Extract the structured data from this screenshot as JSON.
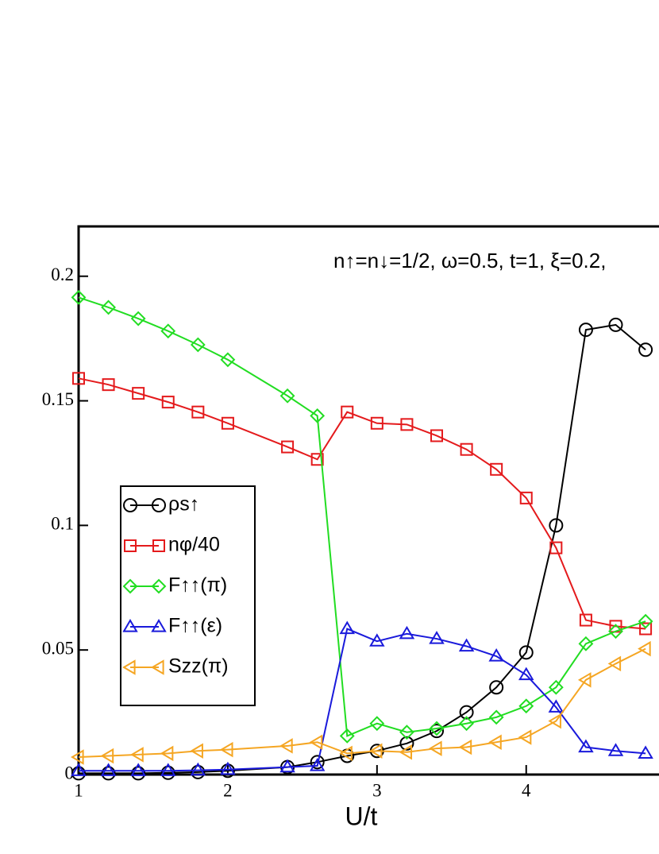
{
  "chart_data": {
    "type": "line",
    "annotation": "n↑=n↓=1/2, ω=0.5, t=1, ξ=0.2,",
    "x_label": "U/t",
    "x": [
      1,
      1.2,
      1.4,
      1.6,
      1.8,
      2.0,
      2.4,
      2.6,
      2.8,
      3.0,
      3.2,
      3.4,
      3.6,
      3.8,
      4.0,
      4.2,
      4.4,
      4.6,
      4.8
    ],
    "xlim": [
      1,
      4.89
    ],
    "xticks": [
      1,
      2,
      3,
      4
    ],
    "ylim": [
      0,
      0.22
    ],
    "yticks": [
      0,
      0.05,
      0.1,
      0.15,
      0.2
    ],
    "series": [
      {
        "name": "ρs↑",
        "color": "#000000",
        "marker": "circle",
        "values": [
          0.0005,
          0.0005,
          0.0005,
          0.0007,
          0.001,
          0.0015,
          0.003,
          0.005,
          0.0075,
          0.0095,
          0.0125,
          0.0175,
          0.025,
          0.035,
          0.049,
          0.1,
          0.1785,
          0.1805,
          0.1705
        ]
      },
      {
        "name": "nφ/40",
        "color": "#e41a1c",
        "marker": "square",
        "values": [
          0.159,
          0.1565,
          0.153,
          0.1495,
          0.1455,
          0.141,
          0.1315,
          0.1265,
          0.1455,
          0.141,
          0.1405,
          0.136,
          0.1305,
          0.1225,
          0.111,
          0.091,
          0.062,
          0.0595,
          0.0585
        ]
      },
      {
        "name": "F↑↑(π)",
        "color": "#22dd22",
        "marker": "diamond",
        "values": [
          0.1915,
          0.1875,
          0.183,
          0.178,
          0.1725,
          0.1665,
          0.152,
          0.144,
          0.0155,
          0.0205,
          0.017,
          0.0185,
          0.0205,
          0.023,
          0.0275,
          0.035,
          0.0525,
          0.0575,
          0.0615
        ]
      },
      {
        "name": "F↑↑(ε)",
        "color": "#1a1adb",
        "marker": "triangle-up",
        "values": [
          0.0015,
          0.0015,
          0.0015,
          0.0015,
          0.0017,
          0.002,
          0.003,
          0.0035,
          0.0585,
          0.0535,
          0.0565,
          0.0545,
          0.0515,
          0.0475,
          0.04,
          0.027,
          0.011,
          0.0095,
          0.0085
        ]
      },
      {
        "name": "Szz(π)",
        "color": "#f5a623",
        "marker": "triangle-left",
        "values": [
          0.007,
          0.0075,
          0.008,
          0.0085,
          0.0095,
          0.01,
          0.0115,
          0.013,
          0.0085,
          0.0095,
          0.009,
          0.0105,
          0.011,
          0.013,
          0.015,
          0.0215,
          0.038,
          0.0445,
          0.0505
        ]
      }
    ]
  }
}
